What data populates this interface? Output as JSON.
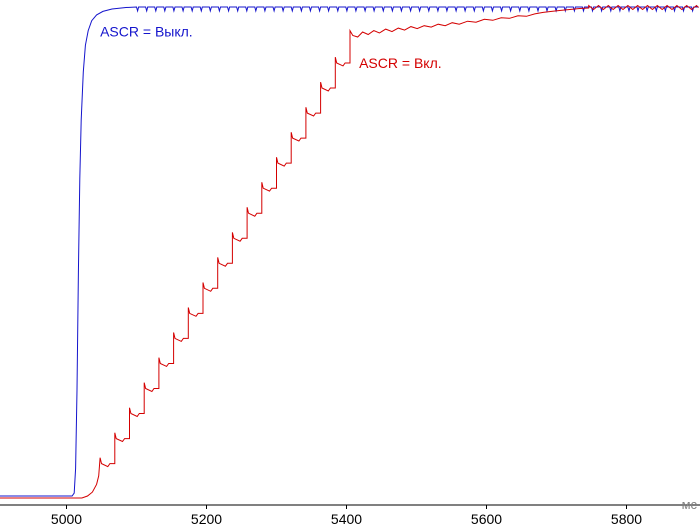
{
  "chart_data": {
    "type": "line",
    "title": "",
    "xlabel": "мс",
    "ylabel": "",
    "x_range": [
      4905,
      5905
    ],
    "y_range": [
      0,
      1
    ],
    "x_ticks": [
      5000,
      5200,
      5400,
      5600,
      5800
    ],
    "grid": false,
    "legend_position": "inline-annotations",
    "axis_color": "#000000",
    "xlabel_color": "#808080",
    "tick_label_color": "#000000",
    "series": [
      {
        "name": "ASCR = Выкл.",
        "color": "#1414cc",
        "segments": [
          {
            "type": "points",
            "pts": [
              [
                4905,
                0.004
              ],
              [
                5008,
                0.004
              ],
              [
                5011,
                0.01
              ],
              [
                5013,
                0.06
              ],
              [
                5015,
                0.22
              ],
              [
                5017,
                0.46
              ],
              [
                5019,
                0.65
              ],
              [
                5021,
                0.77
              ],
              [
                5024,
                0.868
              ],
              [
                5027,
                0.922
              ],
              [
                5031,
                0.952
              ],
              [
                5036,
                0.972
              ],
              [
                5043,
                0.984
              ],
              [
                5052,
                0.991
              ],
              [
                5065,
                0.996
              ],
              [
                5085,
                0.999
              ],
              [
                5100,
                1.0
              ]
            ]
          },
          {
            "type": "ticks",
            "from": 5100,
            "to": 5903,
            "level": 1.0,
            "every": 13,
            "depth": 0.008
          }
        ]
      },
      {
        "name": "ASCR = Вкл.",
        "color": "#d40000",
        "segments": [
          {
            "type": "points",
            "pts": [
              [
                4905,
                0.0
              ],
              [
                5022,
                0.0
              ],
              [
                5030,
                0.004
              ],
              [
                5037,
                0.012
              ],
              [
                5043,
                0.028
              ],
              [
                5046,
                0.045
              ]
            ]
          },
          {
            "type": "stairs",
            "x0": 5048,
            "step_width": 21,
            "overshoot": 0.012,
            "notch": 0.006,
            "levels": [
              0.07,
              0.121,
              0.172,
              0.223,
              0.274,
              0.325,
              0.376,
              0.427,
              0.478,
              0.529,
              0.58,
              0.631,
              0.682,
              0.733,
              0.784,
              0.835,
              0.886
            ]
          },
          {
            "type": "points",
            "pts": [
              [
                5405,
                0.952
              ],
              [
                5409,
                0.942
              ],
              [
                5416,
                0.939
              ],
              [
                5423,
                0.949
              ],
              [
                5431,
                0.944
              ],
              [
                5439,
                0.952
              ],
              [
                5447,
                0.947
              ],
              [
                5456,
                0.955
              ],
              [
                5465,
                0.95
              ],
              [
                5474,
                0.957
              ],
              [
                5483,
                0.953
              ],
              [
                5492,
                0.96
              ],
              [
                5501,
                0.956
              ],
              [
                5511,
                0.962
              ],
              [
                5521,
                0.959
              ],
              [
                5531,
                0.965
              ],
              [
                5541,
                0.962
              ],
              [
                5551,
                0.968
              ],
              [
                5561,
                0.965
              ],
              [
                5573,
                0.971
              ],
              [
                5585,
                0.969
              ],
              [
                5597,
                0.975
              ],
              [
                5609,
                0.973
              ],
              [
                5621,
                0.978
              ],
              [
                5633,
                0.977
              ],
              [
                5645,
                0.982
              ],
              [
                5657,
                0.981
              ],
              [
                5669,
                0.986
              ],
              [
                5681,
                0.989
              ],
              [
                5693,
                0.991
              ],
              [
                5706,
                0.993
              ],
              [
                5719,
                0.995
              ],
              [
                5733,
                0.997
              ],
              [
                5746,
                0.998
              ]
            ]
          },
          {
            "type": "ripple",
            "from": 5746,
            "to": 5903,
            "level": 0.999,
            "amp": 0.004,
            "period": 14
          }
        ]
      }
    ],
    "annotations": [
      {
        "text": "ASCR = Выкл.",
        "x": 5048,
        "v": 0.94,
        "color": "#1414cc"
      },
      {
        "text": "ASCR = Вкл.",
        "x": 5418,
        "v": 0.876,
        "color": "#d40000"
      }
    ]
  }
}
